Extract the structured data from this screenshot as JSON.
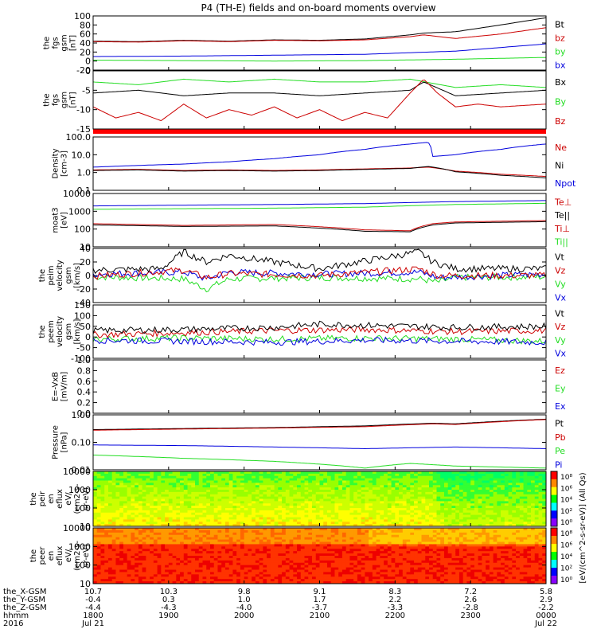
{
  "title": "P4 (TH-E) fields and on-board moments overview",
  "colors": {
    "black": "#000000",
    "red": "#cc0000",
    "green": "#22dd22",
    "blue": "#0000dd",
    "redbar": "#ff0000"
  },
  "chart_data": [
    {
      "type": "line",
      "ylabel": [
        "the",
        "fgs",
        "gsm",
        "[nT]"
      ],
      "yticks": [
        "100",
        "80",
        "60",
        "40",
        "20",
        "0",
        "-20"
      ],
      "ylim": [
        -20,
        100
      ],
      "legend": [
        {
          "label": "Bt",
          "color": "black"
        },
        {
          "label": "bz",
          "color": "red"
        },
        {
          "label": "by",
          "color": "green"
        },
        {
          "label": "bx",
          "color": "blue"
        }
      ],
      "series": [
        {
          "color": "black",
          "x": [
            0,
            0.1,
            0.2,
            0.3,
            0.4,
            0.5,
            0.6,
            0.7,
            0.73,
            0.8,
            0.9,
            1.0
          ],
          "values": [
            44,
            43,
            46,
            44,
            47,
            46,
            49,
            58,
            62,
            65,
            80,
            96
          ]
        },
        {
          "color": "red",
          "x": [
            0,
            0.1,
            0.2,
            0.3,
            0.4,
            0.5,
            0.6,
            0.7,
            0.73,
            0.8,
            0.9,
            1.0
          ],
          "values": [
            43,
            42,
            45,
            43,
            46,
            45,
            47,
            54,
            58,
            50,
            60,
            74
          ]
        },
        {
          "color": "blue",
          "x": [
            0,
            0.2,
            0.4,
            0.6,
            0.8,
            1.0
          ],
          "values": [
            10,
            11,
            13,
            15,
            22,
            38
          ]
        },
        {
          "color": "green",
          "x": [
            0,
            0.2,
            0.4,
            0.6,
            0.8,
            1.0
          ],
          "values": [
            2,
            1,
            0,
            1,
            4,
            8
          ]
        }
      ]
    },
    {
      "type": "line",
      "ylabel": [
        "the",
        "fgs",
        "gsm",
        "[nT]"
      ],
      "yticks": [
        "0",
        "-5",
        "-10",
        "-15"
      ],
      "ylim": [
        -18,
        3
      ],
      "legend": [
        {
          "label": "Bx",
          "color": "black"
        },
        {
          "label": "By",
          "color": "green"
        },
        {
          "label": "Bz",
          "color": "red"
        }
      ],
      "series": [
        {
          "color": "green",
          "x": [
            0,
            0.1,
            0.2,
            0.3,
            0.4,
            0.5,
            0.6,
            0.7,
            0.8,
            0.9,
            1.0
          ],
          "values": [
            -1,
            -2,
            0,
            -1,
            0,
            -1,
            -1,
            0,
            -3,
            -2,
            -3
          ]
        },
        {
          "color": "black",
          "x": [
            0,
            0.1,
            0.2,
            0.3,
            0.4,
            0.5,
            0.6,
            0.7,
            0.73,
            0.8,
            0.9,
            1.0
          ],
          "values": [
            -5,
            -4,
            -6,
            -5,
            -5,
            -6,
            -5,
            -4,
            -1,
            -6,
            -5,
            -4
          ]
        },
        {
          "color": "red",
          "x": [
            0,
            0.05,
            0.1,
            0.15,
            0.2,
            0.25,
            0.3,
            0.35,
            0.4,
            0.45,
            0.5,
            0.55,
            0.6,
            0.65,
            0.7,
            0.73,
            0.76,
            0.8,
            0.85,
            0.9,
            1.0
          ],
          "values": [
            -10,
            -14,
            -12,
            -15,
            -9,
            -14,
            -11,
            -13,
            -10,
            -14,
            -11,
            -15,
            -12,
            -14,
            -5,
            0,
            -5,
            -10,
            -9,
            -10,
            -9
          ]
        }
      ]
    },
    {
      "type": "line",
      "ylabel": [
        "Density",
        "[cm-3]"
      ],
      "yticks": [
        "100.0",
        "10.0",
        "1.0",
        "0.1"
      ],
      "ylim": [
        0.1,
        100
      ],
      "log": true,
      "legend": [
        {
          "label": "Ne",
          "color": "red"
        },
        {
          "label": "Ni",
          "color": "black"
        },
        {
          "label": "Npot",
          "color": "blue"
        }
      ],
      "series": [
        {
          "color": "blue",
          "x": [
            0,
            0.1,
            0.2,
            0.3,
            0.4,
            0.5,
            0.6,
            0.7,
            0.74,
            0.75,
            0.8,
            0.9,
            1.0
          ],
          "values": [
            2,
            2.5,
            3,
            4,
            6,
            10,
            20,
            40,
            50,
            8,
            10,
            20,
            40
          ]
        },
        {
          "color": "red",
          "x": [
            0,
            0.1,
            0.2,
            0.3,
            0.4,
            0.5,
            0.6,
            0.7,
            0.74,
            0.8,
            0.9,
            1.0
          ],
          "values": [
            1.4,
            1.5,
            1.3,
            1.4,
            1.3,
            1.4,
            1.6,
            1.8,
            2,
            1.2,
            0.8,
            0.6
          ]
        },
        {
          "color": "black",
          "x": [
            0,
            0.1,
            0.2,
            0.3,
            0.4,
            0.5,
            0.6,
            0.7,
            0.74,
            0.8,
            0.9,
            1.0
          ],
          "values": [
            1.3,
            1.4,
            1.2,
            1.3,
            1.2,
            1.3,
            1.5,
            1.7,
            2.2,
            1.1,
            0.7,
            0.5
          ]
        }
      ]
    },
    {
      "type": "line",
      "ylabel": [
        "moat3",
        "[eV]"
      ],
      "yticks": [
        "10000",
        "1000",
        "100",
        "10"
      ],
      "ylim": [
        10,
        10000
      ],
      "log": true,
      "legend": [
        {
          "label": "Te⊥",
          "color": "red"
        },
        {
          "label": "Te||",
          "color": "black"
        },
        {
          "label": "Ti⊥",
          "color": "red"
        },
        {
          "label": "Ti||",
          "color": "green"
        }
      ],
      "series": [
        {
          "color": "blue",
          "x": [
            0,
            0.2,
            0.4,
            0.6,
            0.8,
            1.0
          ],
          "values": [
            2000,
            2200,
            2400,
            2700,
            3500,
            4000
          ]
        },
        {
          "color": "green",
          "x": [
            0,
            0.2,
            0.4,
            0.6,
            0.8,
            1.0
          ],
          "values": [
            1300,
            1400,
            1500,
            1700,
            2400,
            2800
          ]
        },
        {
          "color": "red",
          "x": [
            0,
            0.2,
            0.4,
            0.6,
            0.7,
            0.75,
            0.8,
            1.0
          ],
          "values": [
            200,
            160,
            180,
            90,
            80,
            200,
            250,
            300
          ]
        },
        {
          "color": "black",
          "x": [
            0,
            0.2,
            0.4,
            0.6,
            0.7,
            0.75,
            0.8,
            1.0
          ],
          "values": [
            170,
            140,
            150,
            75,
            70,
            170,
            220,
            260
          ]
        }
      ]
    },
    {
      "type": "line",
      "ylabel": [
        "the",
        "peim",
        "velocity",
        "gsm",
        "[km/s]"
      ],
      "yticks": [
        "40",
        "20",
        "0",
        "-20",
        "-40"
      ],
      "ylim": [
        -40,
        40
      ],
      "legend": [
        {
          "label": "Vt",
          "color": "black"
        },
        {
          "label": "Vz",
          "color": "red"
        },
        {
          "label": "Vy",
          "color": "green"
        },
        {
          "label": "Vx",
          "color": "blue"
        }
      ],
      "series": [
        {
          "color": "green",
          "x": [
            0,
            0.2,
            0.25,
            0.3,
            0.5,
            0.72,
            0.76,
            0.8,
            1.0
          ],
          "values": [
            -2,
            -5,
            -20,
            -5,
            -3,
            -5,
            -10,
            -3,
            -2
          ]
        },
        {
          "color": "blue",
          "x": [
            0,
            0.2,
            0.25,
            0.3,
            0.5,
            0.72,
            0.76,
            1.0
          ],
          "values": [
            2,
            5,
            -5,
            5,
            2,
            5,
            -3,
            2
          ]
        },
        {
          "color": "red",
          "x": [
            0,
            0.2,
            0.25,
            0.3,
            0.5,
            0.72,
            0.76,
            1.0
          ],
          "values": [
            -1,
            8,
            -3,
            3,
            0,
            10,
            0,
            0
          ]
        },
        {
          "color": "black",
          "x": [
            0,
            0.15,
            0.2,
            0.25,
            0.3,
            0.5,
            0.72,
            0.75,
            0.8,
            1.0
          ],
          "values": [
            8,
            10,
            35,
            20,
            30,
            10,
            35,
            20,
            10,
            10
          ]
        }
      ]
    },
    {
      "type": "line",
      "ylabel": [
        "the",
        "peem",
        "velocity",
        "gsm",
        "[km/s]"
      ],
      "yticks": [
        "150",
        "100",
        "50",
        "0",
        "-50",
        "-100"
      ],
      "ylim": [
        -100,
        150
      ],
      "legend": [
        {
          "label": "Vt",
          "color": "black"
        },
        {
          "label": "Vz",
          "color": "red"
        },
        {
          "label": "Vy",
          "color": "green"
        },
        {
          "label": "Vx",
          "color": "blue"
        }
      ],
      "series": [
        {
          "color": "green",
          "x": [
            0,
            0.2,
            0.4,
            0.6,
            0.8,
            1.0
          ],
          "values": [
            -10,
            -5,
            -10,
            -5,
            -10,
            -20
          ]
        },
        {
          "color": "blue",
          "x": [
            0,
            0.2,
            0.4,
            0.6,
            0.8,
            1.0
          ],
          "values": [
            -15,
            -20,
            -25,
            -15,
            -20,
            -25
          ]
        },
        {
          "color": "red",
          "x": [
            0,
            0.2,
            0.4,
            0.6,
            0.8,
            1.0
          ],
          "values": [
            10,
            20,
            30,
            35,
            25,
            30
          ]
        },
        {
          "color": "black",
          "x": [
            0,
            0.2,
            0.4,
            0.5,
            0.6,
            0.8,
            1.0
          ],
          "values": [
            30,
            35,
            45,
            60,
            55,
            45,
            50
          ]
        }
      ]
    },
    {
      "type": "line",
      "ylabel": [
        "E=-VxB",
        "[mV/m]"
      ],
      "yticks": [
        "1.0",
        "0.8",
        "0.6",
        "0.4",
        "0.2",
        "0.0"
      ],
      "ylim": [
        0,
        1
      ],
      "legend": [
        {
          "label": "Ez",
          "color": "red"
        },
        {
          "label": "Ey",
          "color": "green"
        },
        {
          "label": "Ex",
          "color": "blue"
        }
      ],
      "series": []
    },
    {
      "type": "line",
      "ylabel": [
        "Pressure",
        "[nPa]"
      ],
      "yticks": [
        "1.00",
        "0.10",
        "0.01"
      ],
      "ylim": [
        0.01,
        4
      ],
      "log": true,
      "legend": [
        {
          "label": "Pt",
          "color": "black"
        },
        {
          "label": "Pb",
          "color": "red"
        },
        {
          "label": "Pe",
          "color": "green"
        },
        {
          "label": "Pi",
          "color": "blue"
        }
      ],
      "series": [
        {
          "color": "black",
          "x": [
            0,
            0.2,
            0.4,
            0.6,
            0.75,
            0.8,
            1.0
          ],
          "values": [
            0.8,
            0.9,
            1.0,
            1.2,
            1.6,
            1.5,
            2.5
          ]
        },
        {
          "color": "red",
          "x": [
            0,
            0.2,
            0.4,
            0.6,
            0.75,
            0.8,
            1.0
          ],
          "values": [
            0.75,
            0.85,
            0.95,
            1.1,
            1.5,
            1.4,
            2.4
          ]
        },
        {
          "color": "blue",
          "x": [
            0,
            0.2,
            0.4,
            0.6,
            0.8,
            1.0
          ],
          "values": [
            0.15,
            0.14,
            0.12,
            0.1,
            0.12,
            0.1
          ]
        },
        {
          "color": "green",
          "x": [
            0,
            0.2,
            0.4,
            0.6,
            0.7,
            0.8,
            1.0
          ],
          "values": [
            0.05,
            0.035,
            0.025,
            0.012,
            0.02,
            0.015,
            0.012
          ]
        }
      ]
    },
    {
      "type": "heatmap",
      "ylabel": [
        "the",
        "peir",
        "en",
        "eflux",
        "eV/",
        "(cm2-s-",
        "sr-eV)"
      ],
      "yticks": [
        "10000",
        "1000",
        "100",
        "10"
      ],
      "ylim": [
        5,
        25000
      ],
      "log": true,
      "color_scale": "ion"
    },
    {
      "type": "heatmap",
      "ylabel": [
        "the",
        "peer",
        "en",
        "eflux",
        "eV/",
        "(cm2-s-",
        "sr-eV)"
      ],
      "yticks": [
        "10000",
        "1000",
        "100",
        "10"
      ],
      "ylim": [
        5,
        25000
      ],
      "log": true,
      "color_scale": "electron"
    }
  ],
  "colorbar": {
    "ticks_top": [
      "10⁸",
      "10⁶",
      "10⁴",
      "10²",
      "10⁰"
    ],
    "ticks_bottom": [
      "10⁸",
      "10⁶",
      "10⁴",
      "10²",
      "10⁰"
    ],
    "label": "[eV/(cm^2-s-sr-eV)] (All Qs)"
  },
  "footer": {
    "rows": [
      {
        "label": "the_X-GSM",
        "values": [
          "10.7",
          "10.3",
          "9.8",
          "9.1",
          "8.3",
          "7.2",
          "5.8"
        ]
      },
      {
        "label": "the_Y-GSM",
        "values": [
          "-0.4",
          "0.3",
          "1.0",
          "1.7",
          "2.2",
          "2.6",
          "2.9"
        ]
      },
      {
        "label": "the_Z-GSM",
        "values": [
          "-4.4",
          "-4.3",
          "-4.0",
          "-3.7",
          "-3.3",
          "-2.8",
          "-2.2"
        ]
      },
      {
        "label": "hhmm",
        "values": [
          "1800",
          "1900",
          "2000",
          "2100",
          "2200",
          "2300",
          "0000"
        ]
      },
      {
        "label": "2016",
        "values": [
          "Jul 21",
          "",
          "",
          "",
          "",
          "",
          "Jul 22"
        ]
      }
    ]
  }
}
